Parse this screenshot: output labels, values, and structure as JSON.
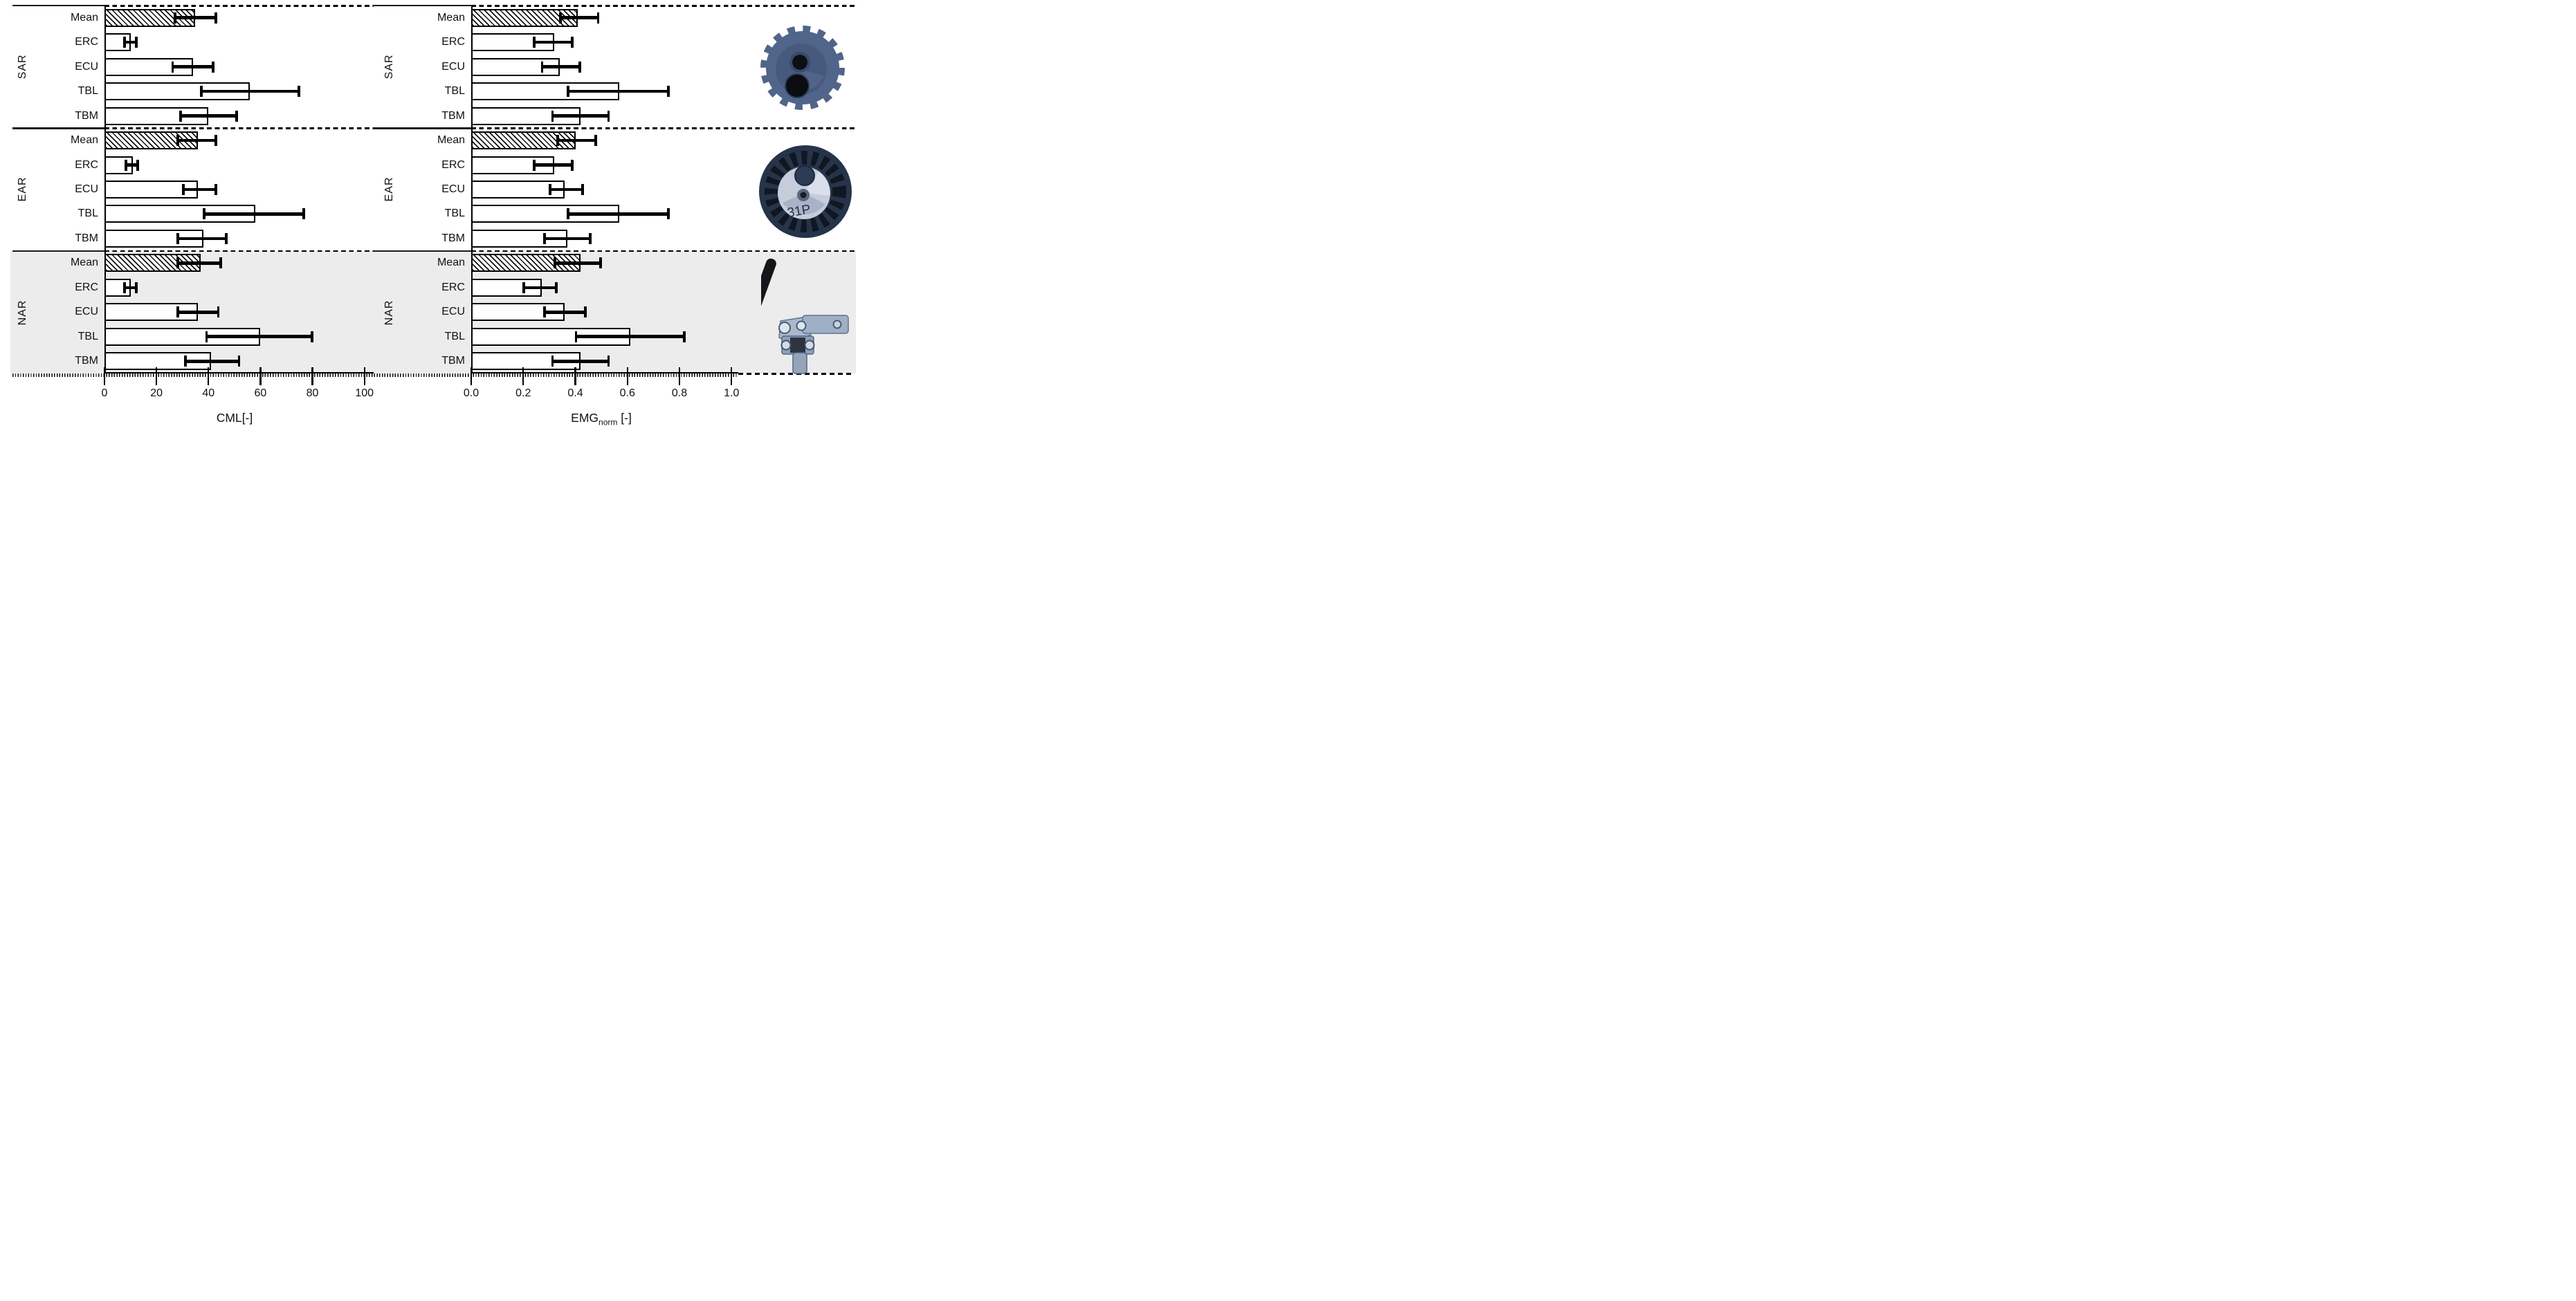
{
  "figure": {
    "type": "grouped horizontal bar figure, two panels with shared row groups",
    "row_groups": [
      "SAR",
      "EAR",
      "NAR"
    ],
    "row_categories": [
      "Mean",
      "ERC",
      "ECU",
      "TBL",
      "TBM"
    ],
    "colors": {
      "bar_fill": "#ffffff",
      "bar_border": "#000000",
      "nar_band": "#ececec",
      "hatch": "diagonal-black-on-white"
    }
  },
  "chart_data": [
    {
      "type": "bar",
      "orientation": "horizontal",
      "xlabel": "CML[-]",
      "xlim": [
        0,
        100
      ],
      "xticks": [
        0,
        20,
        40,
        60,
        80,
        100
      ],
      "xtick_labels": [
        "0",
        "20",
        "40",
        "60",
        "80",
        "100"
      ],
      "legend": "none",
      "grid": "off",
      "groups": [
        {
          "name": "SAR",
          "bars": [
            {
              "label": "Mean",
              "value": 35,
              "err": [
                27,
                43
              ],
              "hatched": true
            },
            {
              "label": "ERC",
              "value": 10,
              "err": [
                7.5,
                12.5
              ],
              "hatched": false
            },
            {
              "label": "ECU",
              "value": 34,
              "err": [
                26,
                42
              ],
              "hatched": false
            },
            {
              "label": "TBL",
              "value": 56,
              "err": [
                37,
                75
              ],
              "hatched": false
            },
            {
              "label": "TBM",
              "value": 40,
              "err": [
                29,
                51
              ],
              "hatched": false
            }
          ]
        },
        {
          "name": "EAR",
          "bars": [
            {
              "label": "Mean",
              "value": 36,
              "err": [
                28,
                43
              ],
              "hatched": true
            },
            {
              "label": "ERC",
              "value": 11,
              "err": [
                8,
                13
              ],
              "hatched": false
            },
            {
              "label": "ECU",
              "value": 36,
              "err": [
                30,
                43
              ],
              "hatched": false
            },
            {
              "label": "TBL",
              "value": 58,
              "err": [
                38,
                77
              ],
              "hatched": false
            },
            {
              "label": "TBM",
              "value": 38,
              "err": [
                28,
                47
              ],
              "hatched": false
            }
          ]
        },
        {
          "name": "NAR",
          "bars": [
            {
              "label": "Mean",
              "value": 37,
              "err": [
                28,
                45
              ],
              "hatched": true
            },
            {
              "label": "ERC",
              "value": 10,
              "err": [
                7.5,
                12.5
              ],
              "hatched": false
            },
            {
              "label": "ECU",
              "value": 36,
              "err": [
                28,
                44
              ],
              "hatched": false
            },
            {
              "label": "TBL",
              "value": 60,
              "err": [
                39,
                80
              ],
              "hatched": false
            },
            {
              "label": "TBM",
              "value": 41,
              "err": [
                31,
                52
              ],
              "hatched": false
            }
          ]
        }
      ]
    },
    {
      "type": "bar",
      "orientation": "horizontal",
      "xlabel": "EMG_norm [-]",
      "xlabel_main": "EMG",
      "xlabel_sub": "norm",
      "xlabel_unit": " [-]",
      "xlim": [
        0.0,
        1.0
      ],
      "xticks": [
        0.0,
        0.2,
        0.4,
        0.6,
        0.8,
        1.0
      ],
      "xtick_labels": [
        "0.0",
        "0.2",
        "0.4",
        "0.6",
        "0.8",
        "1.0"
      ],
      "legend": "none",
      "grid": "off",
      "groups": [
        {
          "name": "SAR",
          "bars": [
            {
              "label": "Mean",
              "value": 0.41,
              "err": [
                0.34,
                0.49
              ],
              "hatched": true
            },
            {
              "label": "ERC",
              "value": 0.32,
              "err": [
                0.24,
                0.39
              ],
              "hatched": false
            },
            {
              "label": "ECU",
              "value": 0.34,
              "err": [
                0.27,
                0.42
              ],
              "hatched": false
            },
            {
              "label": "TBL",
              "value": 0.57,
              "err": [
                0.37,
                0.76
              ],
              "hatched": false
            },
            {
              "label": "TBM",
              "value": 0.42,
              "err": [
                0.31,
                0.53
              ],
              "hatched": false
            }
          ]
        },
        {
          "name": "EAR",
          "bars": [
            {
              "label": "Mean",
              "value": 0.4,
              "err": [
                0.33,
                0.48
              ],
              "hatched": true
            },
            {
              "label": "ERC",
              "value": 0.32,
              "err": [
                0.24,
                0.39
              ],
              "hatched": false
            },
            {
              "label": "ECU",
              "value": 0.36,
              "err": [
                0.3,
                0.43
              ],
              "hatched": false
            },
            {
              "label": "TBL",
              "value": 0.57,
              "err": [
                0.37,
                0.76
              ],
              "hatched": false
            },
            {
              "label": "TBM",
              "value": 0.37,
              "err": [
                0.28,
                0.46
              ],
              "hatched": false
            }
          ]
        },
        {
          "name": "NAR",
          "bars": [
            {
              "label": "Mean",
              "value": 0.42,
              "err": [
                0.32,
                0.5
              ],
              "hatched": true
            },
            {
              "label": "ERC",
              "value": 0.27,
              "err": [
                0.2,
                0.33
              ],
              "hatched": false
            },
            {
              "label": "ECU",
              "value": 0.36,
              "err": [
                0.28,
                0.44
              ],
              "hatched": false
            },
            {
              "label": "TBL",
              "value": 0.61,
              "err": [
                0.4,
                0.82
              ],
              "hatched": false
            },
            {
              "label": "TBM",
              "value": 0.42,
              "err": [
                0.31,
                0.53
              ],
              "hatched": false
            }
          ]
        }
      ]
    }
  ],
  "photos": [
    {
      "name": "toothed-gear-wheel",
      "row_group": "SAR"
    },
    {
      "name": "impeller-wheel",
      "row_group": "EAR",
      "label": "31P"
    },
    {
      "name": "manual-lever-tool",
      "row_group": "NAR"
    }
  ]
}
